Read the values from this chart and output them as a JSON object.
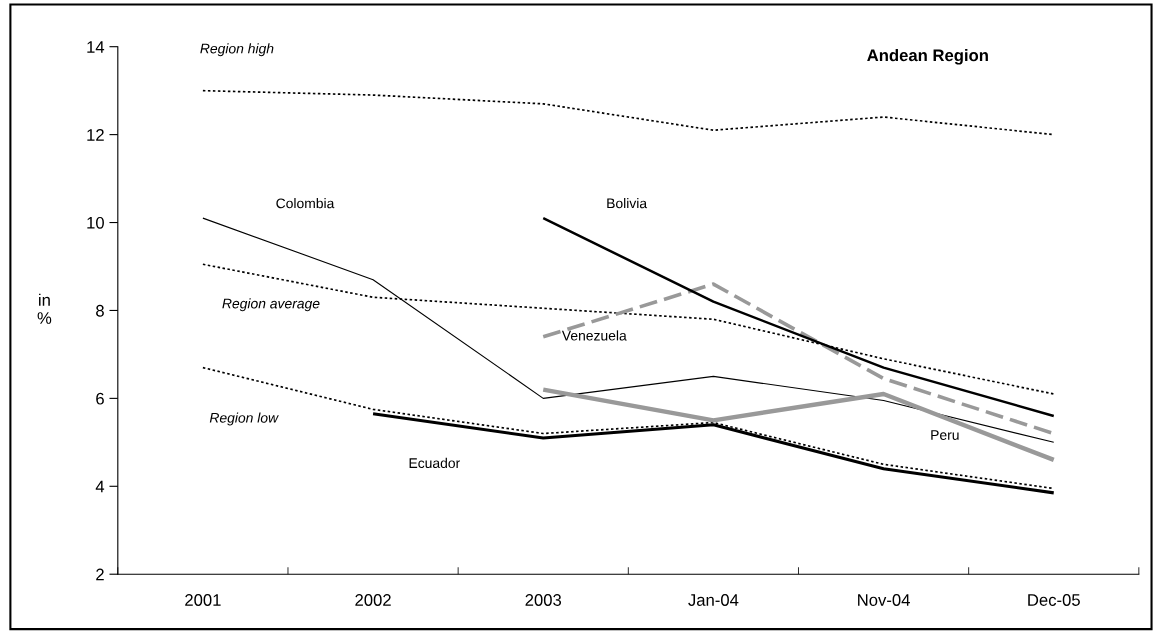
{
  "chart_data": {
    "type": "line",
    "title": "Andean Region",
    "ylabel": "in\n%",
    "categories": [
      "2001",
      "2002",
      "2003",
      "Jan-04",
      "Nov-04",
      "Dec-05"
    ],
    "ylim": [
      2,
      14
    ],
    "yticks": [
      2,
      4,
      6,
      8,
      10,
      12,
      14
    ],
    "grid": false,
    "legend": false,
    "marker": "none",
    "series": [
      {
        "name": "Region high",
        "color": "#000000",
        "line_style": "dotted",
        "values": [
          13.0,
          12.9,
          12.7,
          12.1,
          12.4,
          12.0
        ]
      },
      {
        "name": "Region average",
        "color": "#000000",
        "line_style": "dotted",
        "values": [
          9.05,
          8.3,
          8.05,
          7.8,
          6.9,
          6.1
        ]
      },
      {
        "name": "Region low",
        "color": "#000000",
        "line_style": "dotted",
        "values": [
          6.7,
          5.75,
          5.2,
          5.45,
          4.5,
          3.95
        ]
      },
      {
        "name": "Colombia",
        "color": "#000000",
        "line_style": "solid",
        "values": [
          10.1,
          8.7,
          6.0,
          6.5,
          5.95,
          5.0
        ]
      },
      {
        "name": "Ecuador",
        "color": "#000000",
        "line_style": "solid",
        "values": [
          null,
          5.65,
          5.1,
          5.4,
          4.4,
          3.85
        ]
      },
      {
        "name": "Venezuela",
        "color": "#999999",
        "line_style": "dashed",
        "values": [
          null,
          null,
          7.4,
          8.6,
          6.45,
          5.2
        ]
      },
      {
        "name": "Bolivia",
        "color": "#000000",
        "line_style": "solid",
        "values": [
          null,
          null,
          10.1,
          8.2,
          6.7,
          5.6
        ]
      },
      {
        "name": "Peru",
        "color": "#999999",
        "line_style": "solid",
        "values": [
          null,
          null,
          6.2,
          5.5,
          6.1,
          4.6
        ]
      }
    ]
  }
}
